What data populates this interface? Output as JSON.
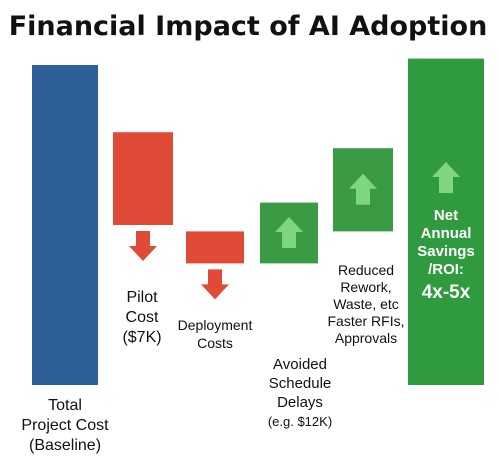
{
  "chart_data": {
    "type": "waterfall",
    "title": "Financial Impact of AI Adoption",
    "colors": {
      "baseline": "#2f5f98",
      "cost": "#e04b37",
      "savings": "#3b9a44",
      "net": "#2f9a3e",
      "arrow_down": "#e04b37",
      "arrow_up": "#7fd67f"
    },
    "steps": [
      {
        "label_lines": [
          "Total",
          "Project Cost",
          "(Baseline)"
        ],
        "kind": "baseline",
        "start": 0,
        "end": 100
      },
      {
        "label_lines": [
          "Pilot",
          "Cost",
          "($7K)"
        ],
        "kind": "cost",
        "start": 79,
        "end": 50
      },
      {
        "label_lines": [
          "Deployment",
          "Costs"
        ],
        "kind": "cost",
        "start": 48,
        "end": 38
      },
      {
        "label_lines": [
          "Avoided",
          "Schedule",
          "Delays",
          "(e.g. $12K)"
        ],
        "kind": "savings",
        "start": 38,
        "end": 57
      },
      {
        "label_lines": [
          "Reduced",
          "Rework,",
          "Waste, etc",
          "Faster RFIs,",
          "Approvals"
        ],
        "kind": "savings",
        "start": 48,
        "end": 74
      },
      {
        "label_lines": [
          "Net",
          "Annual",
          "Savings",
          "/ROI:",
          "4x-5x"
        ],
        "kind": "net",
        "start": 0,
        "end": 102
      }
    ]
  }
}
